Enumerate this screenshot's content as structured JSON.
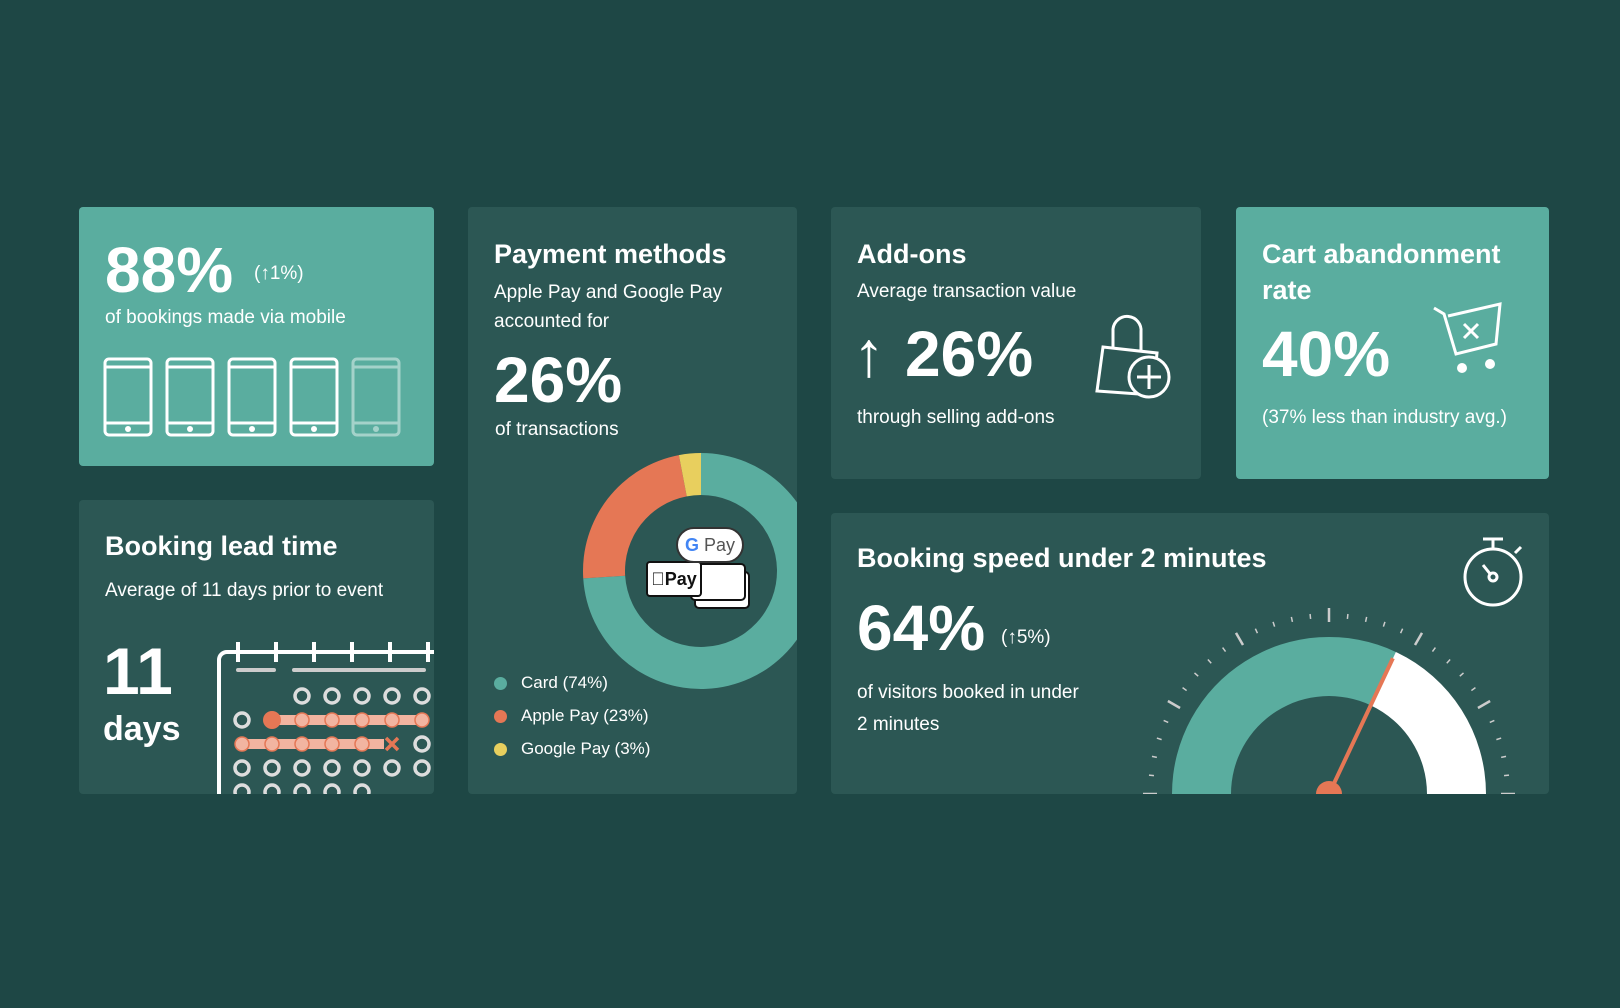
{
  "mobile": {
    "value": "88%",
    "change": "(↑1%)",
    "caption": "of bookings made via mobile",
    "phones_filled": 4.5
  },
  "lead": {
    "title": "Booking lead time",
    "subtitle": "Average of 11 days prior to event",
    "number": "11",
    "unit": "days"
  },
  "payment": {
    "title": "Payment methods",
    "subtitle_1": "Apple Pay and Google Pay",
    "subtitle_2": "accounted for",
    "value": "26%",
    "caption": "of transactions",
    "gpay_label": "Pay",
    "apay_label": "Pay",
    "chart_data": {
      "type": "pie",
      "categories": [
        "Card",
        "Apple Pay",
        "Google Pay"
      ],
      "values": [
        74,
        23,
        3
      ],
      "colors": [
        "#5aad9f",
        "#e57755",
        "#e8cf5e"
      ],
      "legend": [
        "Card (74%)",
        "Apple Pay (23%)",
        "Google Pay (3%)"
      ],
      "legend_position": "bottom-left"
    }
  },
  "addons": {
    "title": "Add-ons",
    "subtitle": "Average transaction value",
    "arrow": "↑",
    "value": "26%",
    "caption": "through selling add-ons"
  },
  "cart": {
    "title_1": "Cart abandonment",
    "title_2": "rate",
    "value": "40%",
    "caption": "(37% less than industry avg.)"
  },
  "speed": {
    "title": "Booking speed under 2 minutes",
    "value": "64%",
    "change": "(↑5%)",
    "caption_1": "of visitors booked in under",
    "caption_2": "2 minutes",
    "gauge_percent": 64
  },
  "colors": {
    "background": "#1e4745",
    "card": "#2c5754",
    "teal": "#5aad9f",
    "orange": "#e57755",
    "yellow": "#e8cf5e"
  }
}
